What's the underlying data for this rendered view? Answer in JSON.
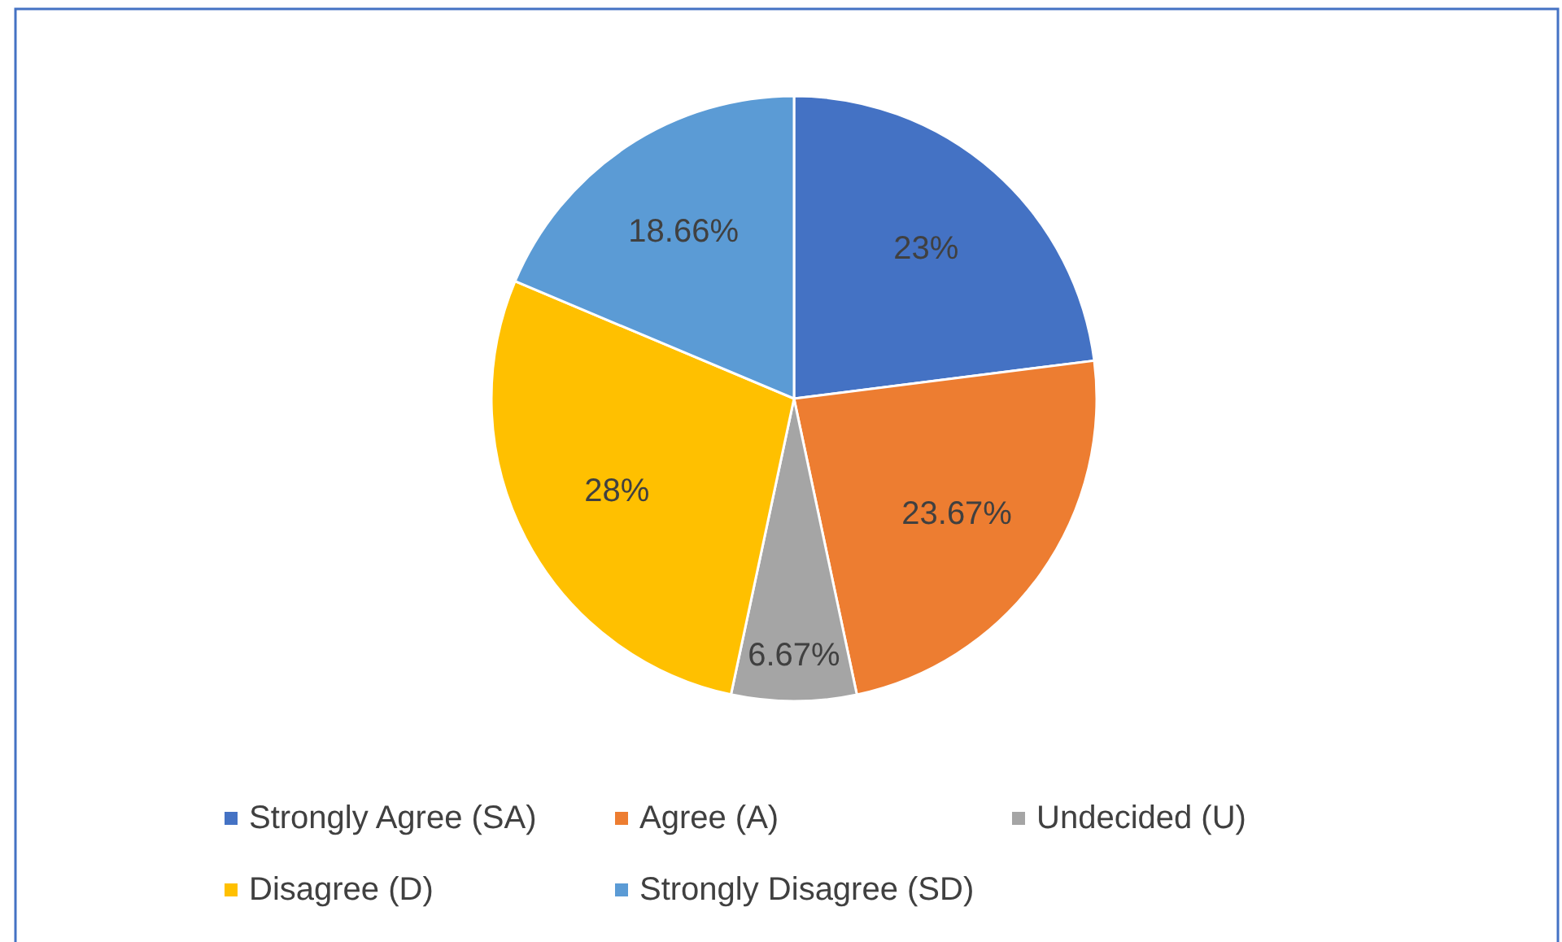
{
  "chart_data": {
    "type": "pie",
    "categories": [
      "Strongly Agree (SA)",
      "Agree (A)",
      "Undecided (U)",
      "Disagree (D)",
      "Strongly Disagree (SD)"
    ],
    "values": [
      23,
      23.67,
      6.67,
      28,
      18.66
    ],
    "colors": [
      "#4472c4",
      "#ed7d31",
      "#a5a5a5",
      "#ffc000",
      "#5b9bd5"
    ],
    "value_labels": [
      "23%",
      "23.67%",
      "6.67%",
      "28%",
      "18.66%"
    ],
    "legend": "bottom"
  }
}
